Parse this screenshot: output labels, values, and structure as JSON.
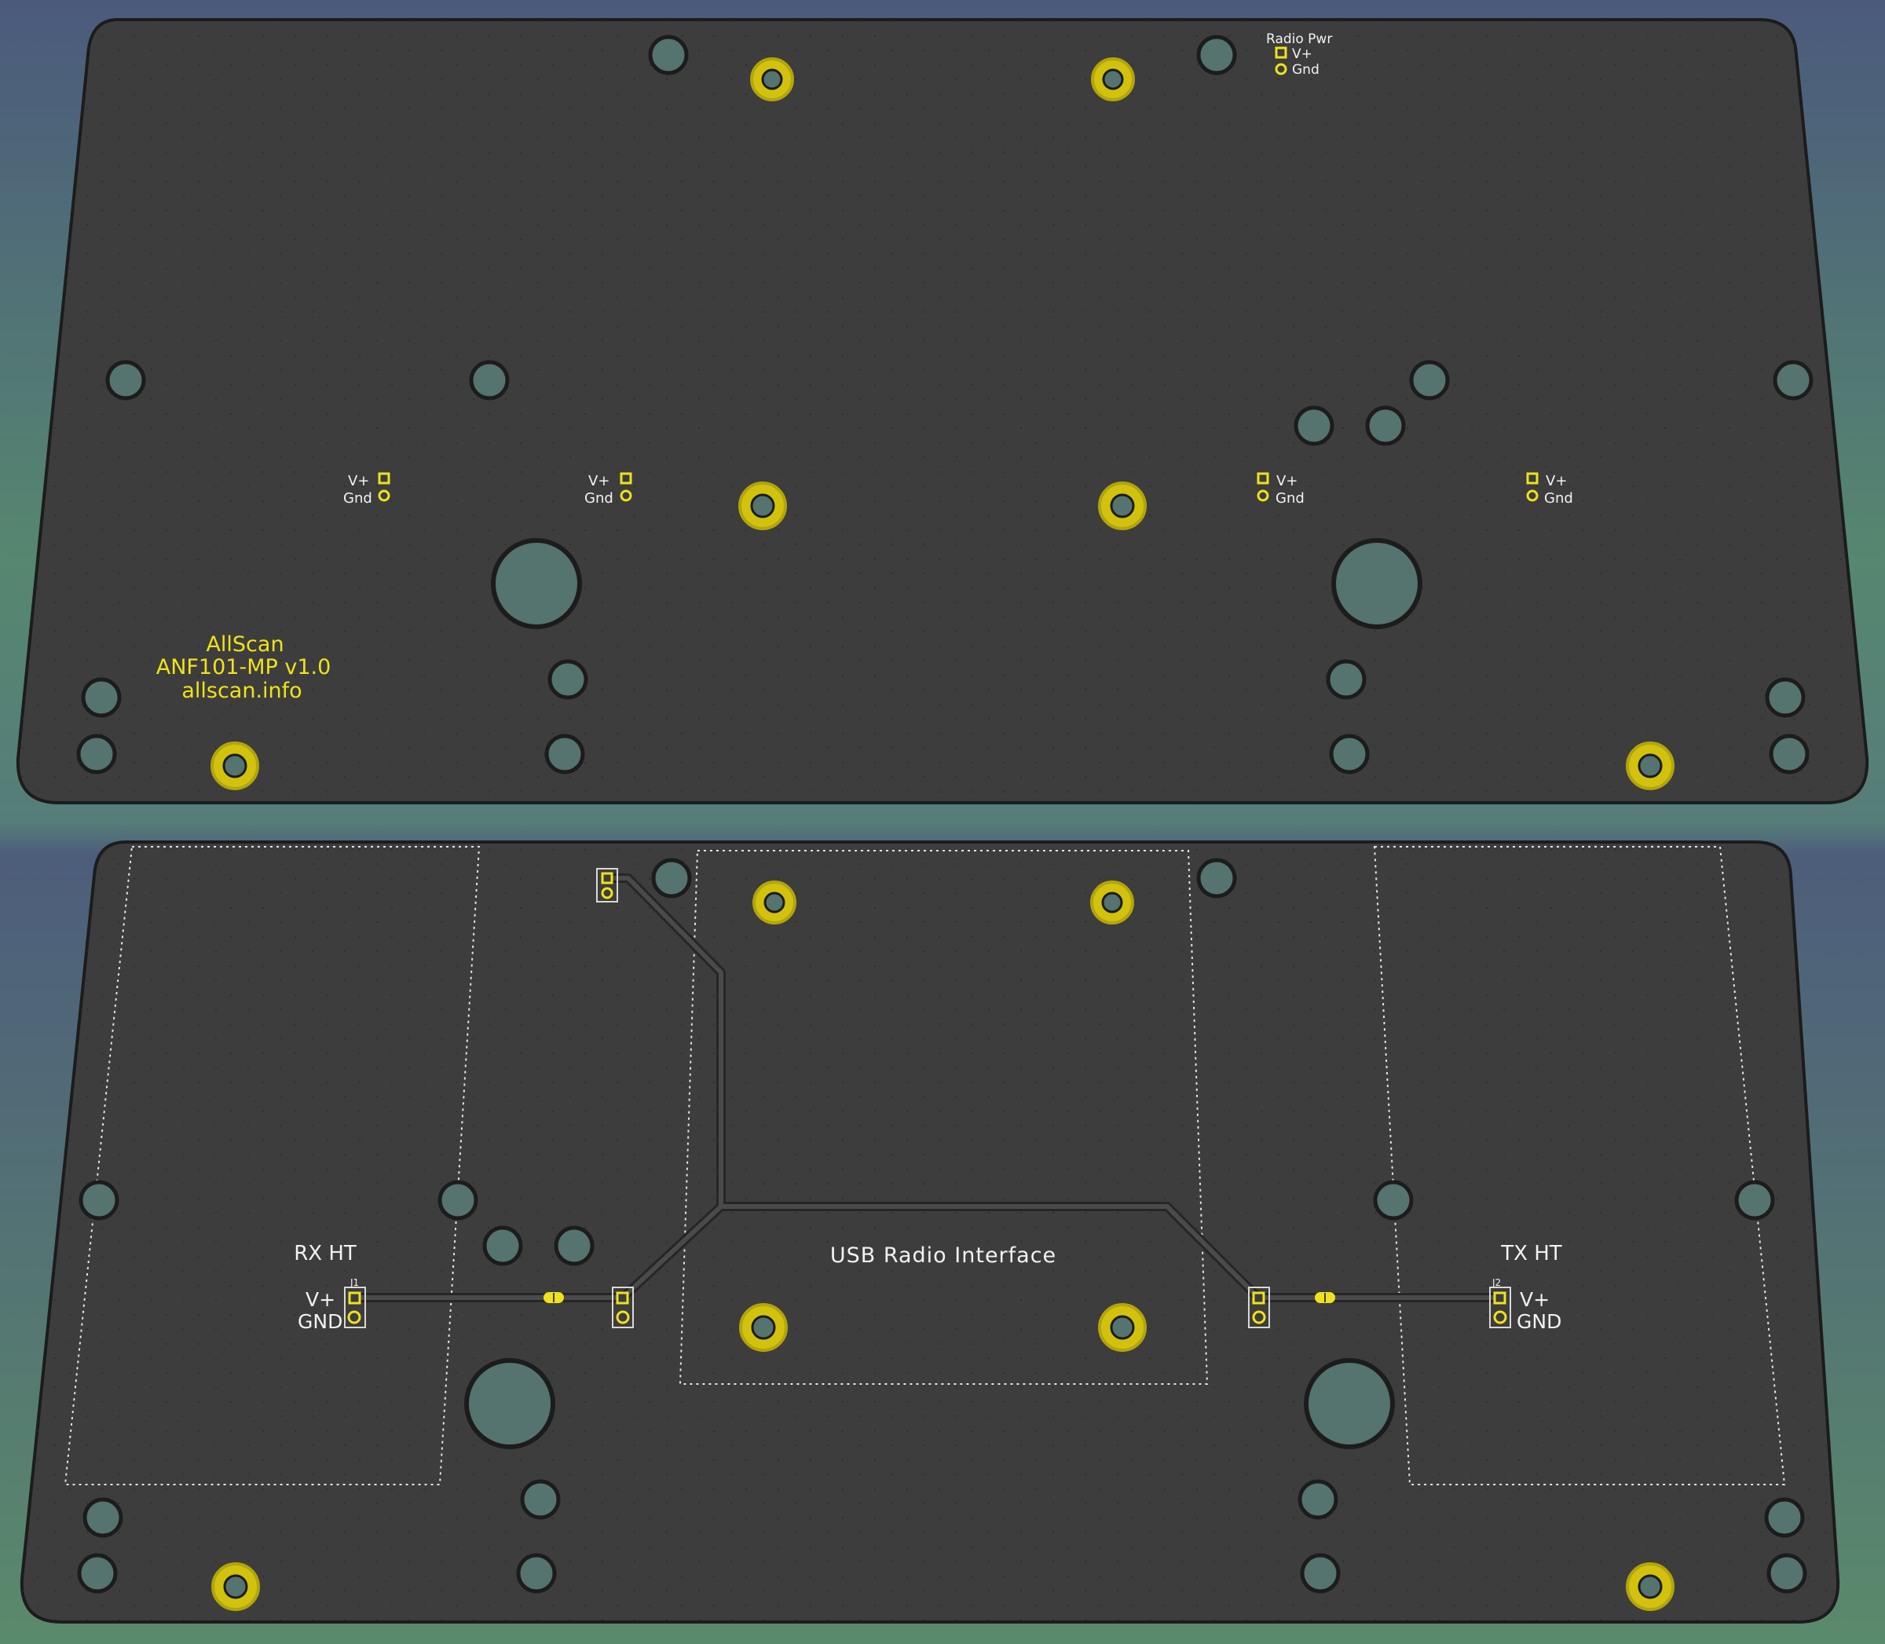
{
  "colors": {
    "background_top": "#4b5a7c",
    "background_bottom": "#5a8a6c",
    "board": "#3d3d3d",
    "board_edge": "#1c1c1c",
    "hole": "#55736f",
    "pad_gold": "#d2c20e",
    "silkscreen_white": "#f2f2f2",
    "silkscreen_yellow": "#f0e21a",
    "trace": "#2a2a2a",
    "outline_dotted": "#e6e6e6"
  },
  "top_board": {
    "radio_pwr_title": "Radio Pwr",
    "radio_pwr_vplus": "V+",
    "radio_pwr_gnd": "Gnd",
    "vplus": "V+",
    "gnd": "Gnd",
    "brand_line1": "AllScan",
    "brand_line2": "ANF101-MP v1.0",
    "brand_line3": "allscan.info"
  },
  "bottom_board": {
    "rx_label": "RX HT",
    "tx_label": "TX HT",
    "usb_label": "USB Radio Interface",
    "j1_ref": "J1",
    "j2_ref": "J2",
    "vplus": "V+",
    "gnd": "GND"
  }
}
